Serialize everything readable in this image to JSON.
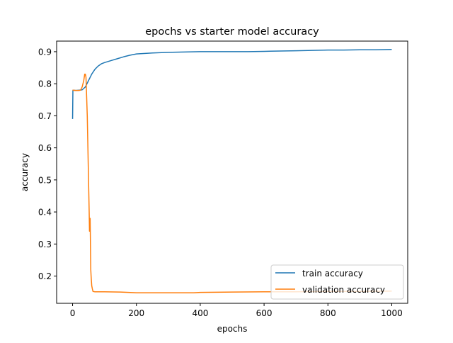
{
  "chart_data": {
    "type": "line",
    "title": "epochs vs starter model accuracy",
    "xlabel": "epochs",
    "ylabel": "accuracy",
    "xlim": [
      -50,
      1050
    ],
    "ylim": [
      0.115,
      0.933
    ],
    "xticks": [
      0,
      200,
      400,
      600,
      800,
      1000
    ],
    "yticks": [
      0.2,
      0.3,
      0.4,
      0.5,
      0.6,
      0.7,
      0.8,
      0.9
    ],
    "xtick_labels": [
      "0",
      "200",
      "400",
      "600",
      "800",
      "1000"
    ],
    "ytick_labels": [
      "0.2",
      "0.3",
      "0.4",
      "0.5",
      "0.6",
      "0.7",
      "0.8",
      "0.9"
    ],
    "legend_position": "lower-right",
    "series": [
      {
        "name": "train accuracy",
        "color": "#1f77b4",
        "points": [
          [
            0,
            0.69
          ],
          [
            1,
            0.78
          ],
          [
            10,
            0.779
          ],
          [
            20,
            0.78
          ],
          [
            30,
            0.781
          ],
          [
            40,
            0.79
          ],
          [
            50,
            0.81
          ],
          [
            60,
            0.83
          ],
          [
            70,
            0.845
          ],
          [
            80,
            0.855
          ],
          [
            90,
            0.862
          ],
          [
            100,
            0.866
          ],
          [
            120,
            0.872
          ],
          [
            140,
            0.878
          ],
          [
            160,
            0.884
          ],
          [
            180,
            0.889
          ],
          [
            200,
            0.893
          ],
          [
            250,
            0.896
          ],
          [
            300,
            0.898
          ],
          [
            350,
            0.899
          ],
          [
            400,
            0.9
          ],
          [
            450,
            0.9
          ],
          [
            500,
            0.9
          ],
          [
            550,
            0.9
          ],
          [
            600,
            0.901
          ],
          [
            650,
            0.902
          ],
          [
            700,
            0.903
          ],
          [
            750,
            0.904
          ],
          [
            800,
            0.905
          ],
          [
            850,
            0.905
          ],
          [
            900,
            0.906
          ],
          [
            950,
            0.906
          ],
          [
            1000,
            0.907
          ]
        ]
      },
      {
        "name": "validation accuracy",
        "color": "#ff7f0e",
        "points": [
          [
            0,
            0.78
          ],
          [
            1,
            0.78
          ],
          [
            10,
            0.779
          ],
          [
            20,
            0.779
          ],
          [
            25,
            0.78
          ],
          [
            30,
            0.79
          ],
          [
            35,
            0.81
          ],
          [
            38,
            0.83
          ],
          [
            40,
            0.83
          ],
          [
            42,
            0.82
          ],
          [
            44,
            0.76
          ],
          [
            46,
            0.7
          ],
          [
            48,
            0.6
          ],
          [
            50,
            0.5
          ],
          [
            52,
            0.4
          ],
          [
            53,
            0.34
          ],
          [
            54,
            0.37
          ],
          [
            55,
            0.38
          ],
          [
            56,
            0.3
          ],
          [
            57,
            0.22
          ],
          [
            58,
            0.2
          ],
          [
            60,
            0.17
          ],
          [
            62,
            0.16
          ],
          [
            64,
            0.152
          ],
          [
            70,
            0.151
          ],
          [
            100,
            0.151
          ],
          [
            150,
            0.15
          ],
          [
            200,
            0.148
          ],
          [
            300,
            0.148
          ],
          [
            380,
            0.148
          ],
          [
            400,
            0.149
          ],
          [
            500,
            0.15
          ],
          [
            600,
            0.151
          ],
          [
            700,
            0.151
          ],
          [
            800,
            0.152
          ],
          [
            900,
            0.152
          ],
          [
            1000,
            0.153
          ]
        ]
      }
    ]
  }
}
